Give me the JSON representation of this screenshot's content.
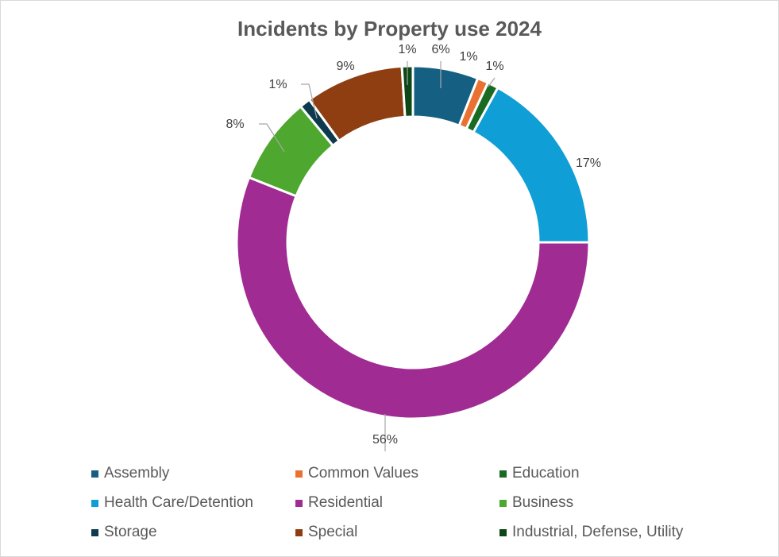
{
  "chart_data": {
    "type": "pie",
    "variant": "doughnut",
    "title": "Incidents by Property use 2024",
    "legend_position": "bottom",
    "slices": [
      {
        "name": "Assembly",
        "value": 6,
        "label": "6%",
        "color": "#156082"
      },
      {
        "name": "Common Values",
        "value": 1,
        "label": "1%",
        "color": "#E97132"
      },
      {
        "name": "Education",
        "value": 1,
        "label": "1%",
        "color": "#196B24"
      },
      {
        "name": "Health Care/Detention",
        "value": 17,
        "label": "17%",
        "color": "#0F9ED5"
      },
      {
        "name": "Residential",
        "value": 56,
        "label": "56%",
        "color": "#A02B93"
      },
      {
        "name": "Business",
        "value": 8,
        "label": "8%",
        "color": "#4EA72E"
      },
      {
        "name": "Storage",
        "value": 1,
        "label": "1%",
        "color": "#0E3A4E"
      },
      {
        "name": "Special",
        "value": 9,
        "label": "9%",
        "color": "#8E3E10"
      },
      {
        "name": "Industrial, Defense, Utility",
        "value": 1,
        "label": "1%",
        "color": "#0D4715"
      }
    ]
  }
}
